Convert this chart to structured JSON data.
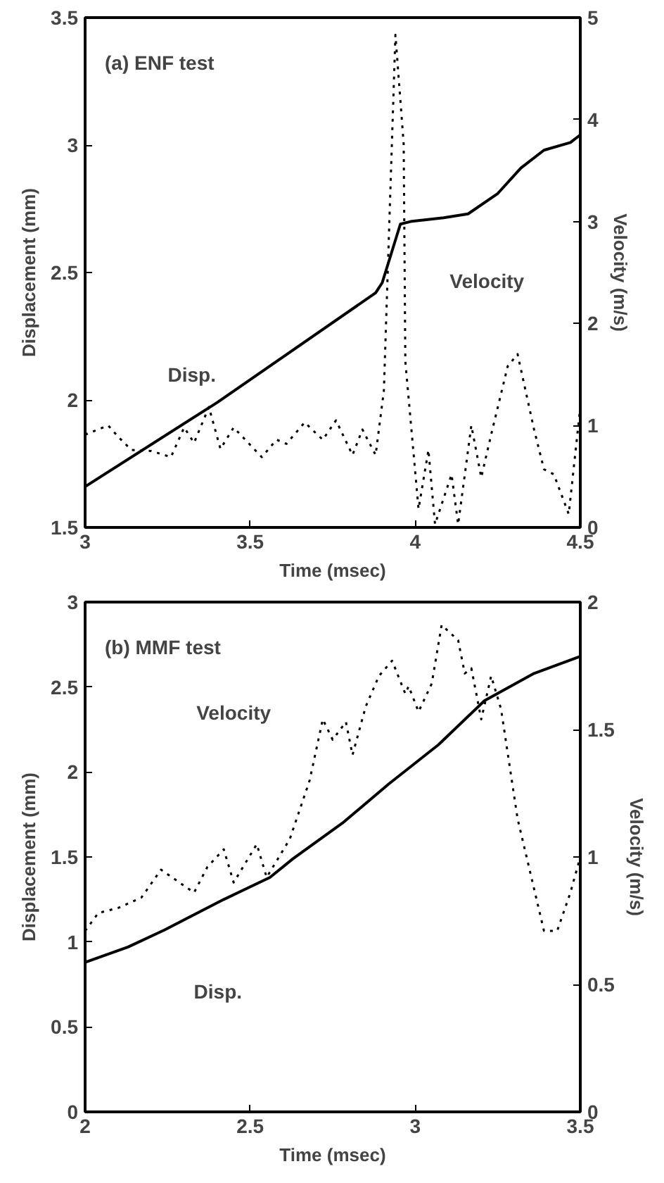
{
  "chart_data": [
    {
      "type": "line",
      "xlabel": "Time (msec)",
      "ylabel": "Displacement (mm)",
      "y2label": "Velocity (m/s)",
      "xlim": [
        3,
        4.5
      ],
      "xticks": [
        3,
        3.5,
        4,
        4.5
      ],
      "ylim": [
        1.5,
        3.5
      ],
      "yticks": [
        1.5,
        2,
        2.5,
        3,
        3.5
      ],
      "y2lim": [
        0,
        5
      ],
      "y2ticks": [
        0,
        1,
        2,
        3,
        4,
        5
      ],
      "grid": false,
      "annotations": [
        "(a) ENF test"
      ],
      "series": [
        {
          "name": "Disp.",
          "color": "#000000",
          "line_style": "solid",
          "x": [
            3.0,
            3.4,
            3.88,
            3.9,
            3.955,
            3.986,
            4.086,
            4.16,
            4.25,
            4.32,
            4.39,
            4.47,
            4.5
          ],
          "values": [
            1.66,
            1.99,
            2.42,
            2.46,
            2.69,
            2.7,
            2.715,
            2.73,
            2.81,
            2.91,
            2.98,
            3.01,
            3.04
          ]
        },
        {
          "name": "Velocity",
          "color": "#000000",
          "line_style": "dotted",
          "axis": "y2",
          "x": [
            3.0,
            3.07,
            3.1,
            3.14,
            3.2,
            3.26,
            3.3,
            3.33,
            3.375,
            3.41,
            3.45,
            3.535,
            3.58,
            3.61,
            3.665,
            3.72,
            3.76,
            3.81,
            3.84,
            3.88,
            3.905,
            3.94,
            3.965,
            3.97,
            4.01,
            4.04,
            4.06,
            4.11,
            4.13,
            4.17,
            4.2,
            4.23,
            4.28,
            4.31,
            4.36,
            4.39,
            4.42,
            4.465,
            4.5
          ],
          "values": [
            0.91,
            1.0,
            0.89,
            0.76,
            0.75,
            0.69,
            0.98,
            0.83,
            1.18,
            0.77,
            0.98,
            0.69,
            0.86,
            0.82,
            1.03,
            0.86,
            1.05,
            0.71,
            0.96,
            0.71,
            1.34,
            4.83,
            3.76,
            1.63,
            0.18,
            0.76,
            0.03,
            0.52,
            0.03,
            1.0,
            0.49,
            0.91,
            1.58,
            1.7,
            0.96,
            0.57,
            0.52,
            0.13,
            1.18
          ]
        }
      ]
    },
    {
      "type": "line",
      "xlabel": "Time (msec)",
      "ylabel": "Displacement (mm)",
      "y2label": "Velocity (m/s)",
      "xlim": [
        2,
        3.5
      ],
      "xticks": [
        2,
        2.5,
        3,
        3.5
      ],
      "ylim": [
        0,
        3
      ],
      "yticks": [
        0,
        0.5,
        1,
        1.5,
        2,
        2.5,
        3
      ],
      "y2lim": [
        0,
        2
      ],
      "y2ticks": [
        0,
        0.5,
        1,
        1.5,
        2
      ],
      "grid": false,
      "annotations": [
        "(b) MMF test"
      ],
      "series": [
        {
          "name": "Disp.",
          "color": "#000000",
          "line_style": "solid",
          "x": [
            2.0,
            2.13,
            2.24,
            2.42,
            2.56,
            2.63,
            2.78,
            2.92,
            3.07,
            3.21,
            3.36,
            3.5
          ],
          "values": [
            0.88,
            0.97,
            1.07,
            1.25,
            1.38,
            1.49,
            1.7,
            1.93,
            2.16,
            2.42,
            2.58,
            2.68
          ]
        },
        {
          "name": "Velocity",
          "color": "#000000",
          "line_style": "dotted",
          "axis": "y2",
          "x": [
            2.0,
            2.04,
            2.1,
            2.17,
            2.23,
            2.33,
            2.37,
            2.42,
            2.45,
            2.52,
            2.55,
            2.62,
            2.68,
            2.72,
            2.75,
            2.79,
            2.81,
            2.85,
            2.89,
            2.93,
            2.97,
            2.98,
            3.01,
            3.05,
            3.08,
            3.13,
            3.15,
            3.17,
            3.2,
            3.23,
            3.26,
            3.31,
            3.39,
            3.43,
            3.47,
            3.5
          ],
          "values": [
            0.71,
            0.78,
            0.8,
            0.84,
            0.95,
            0.86,
            0.96,
            1.03,
            0.9,
            1.05,
            0.92,
            1.07,
            1.3,
            1.54,
            1.46,
            1.53,
            1.4,
            1.59,
            1.71,
            1.77,
            1.64,
            1.67,
            1.57,
            1.68,
            1.91,
            1.85,
            1.72,
            1.74,
            1.54,
            1.71,
            1.58,
            1.15,
            0.71,
            0.71,
            0.86,
            1.0
          ]
        }
      ]
    }
  ]
}
